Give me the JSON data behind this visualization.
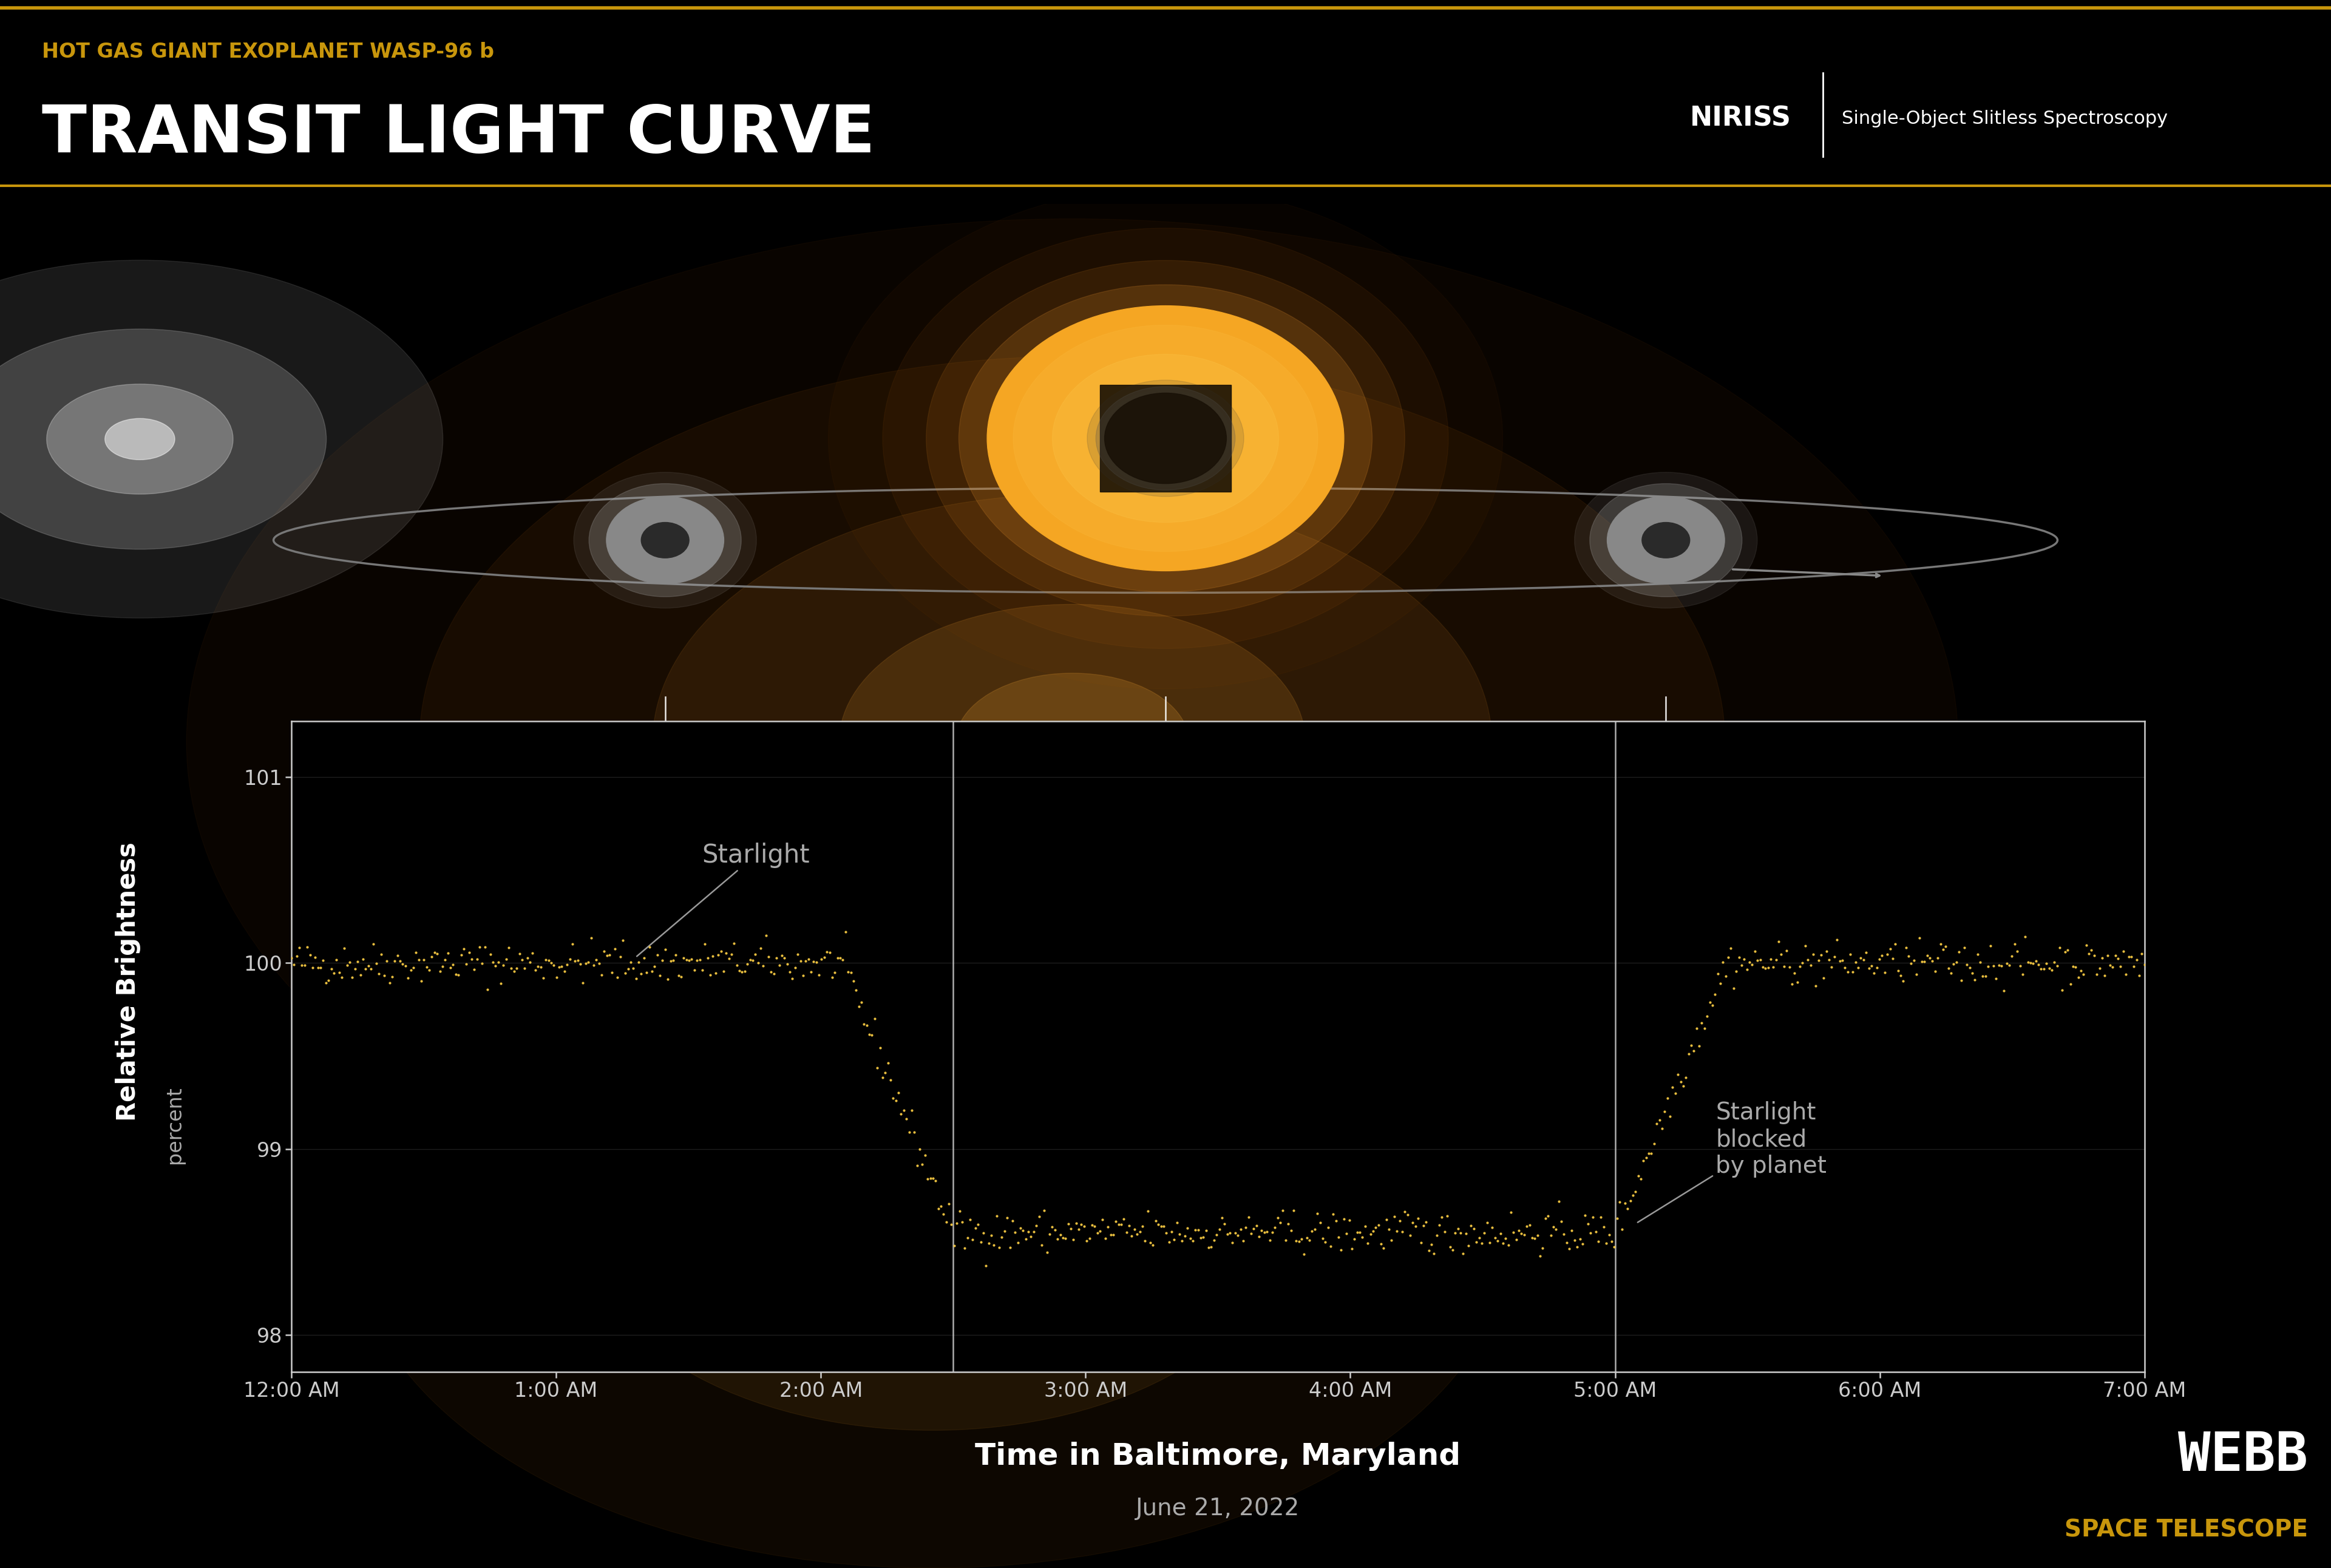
{
  "bg_color": "#000000",
  "header_bg": "#111111",
  "gold_color": "#c8960c",
  "white_color": "#ffffff",
  "gray_color": "#aaaaaa",
  "title_small": "HOT GAS GIANT EXOPLANET WASP-96 b",
  "title_large": "TRANSIT LIGHT CURVE",
  "niriss_label": "NIRISS",
  "niriss_desc": "Single-Object Slitless Spectroscopy",
  "xlabel_main": "Time in Baltimore, Maryland",
  "xlabel_sub": "June 21, 2022",
  "ylabel_main": "Relative Brightness",
  "ylabel_sub": "percent",
  "yticks": [
    98,
    99,
    100,
    101
  ],
  "xtick_labels": [
    "12:00 AM",
    "1:00 AM",
    "2:00 AM",
    "3:00 AM",
    "4:00 AM",
    "5:00 AM",
    "6:00 AM",
    "7:00 AM"
  ],
  "ylim": [
    97.8,
    101.3
  ],
  "xlim": [
    0,
    7
  ],
  "starlight_label": "Starlight",
  "blocked_label": "Starlight\nblocked\nby planet",
  "dot_color": "#f5c842",
  "plot_bg": "#000000",
  "axis_color": "#cccccc",
  "grid_color": "#333333",
  "annotation_line_color": "#999999",
  "vline_x1": 2.5,
  "vline_x2": 5.0,
  "webb_text": "WEBB",
  "webb_sub": "SPACE TELESCOPE",
  "transit_t0": 3.75,
  "transit_duration": 2.5,
  "transit_depth": 1.45,
  "transit_ingress": 0.42,
  "noise_std": 0.055,
  "n_points": 700
}
